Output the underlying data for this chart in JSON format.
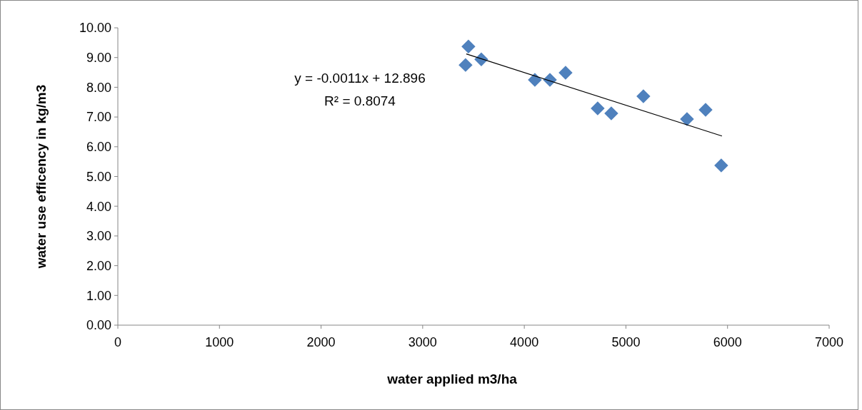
{
  "chart_data": {
    "type": "scatter",
    "xlabel": "water applied m3/ha",
    "ylabel": "water use efficency in kg/m3",
    "annotations": [
      "y = -0.0011x + 12.896",
      "R² = 0.8074"
    ],
    "xlim": [
      0,
      7000
    ],
    "xticks": [
      0,
      1000,
      2000,
      3000,
      4000,
      5000,
      6000,
      7000
    ],
    "ylim": [
      0,
      10
    ],
    "yticks": [
      {
        "value": 0,
        "label": "0.00"
      },
      {
        "value": 1,
        "label": "1.00"
      },
      {
        "value": 2,
        "label": "2.00"
      },
      {
        "value": 3,
        "label": "3.00"
      },
      {
        "value": 4,
        "label": "4.00"
      },
      {
        "value": 5,
        "label": "5.00"
      },
      {
        "value": 6,
        "label": "6.00"
      },
      {
        "value": 7,
        "label": "7.00"
      },
      {
        "value": 8,
        "label": "8.00"
      },
      {
        "value": 9,
        "label": "9.00"
      },
      {
        "value": 10,
        "label": "10.00"
      }
    ],
    "grid": false,
    "series": [
      {
        "marker": "diamond",
        "color": "#4f81bd",
        "x": [
          3450,
          3422,
          3577,
          4104,
          4252,
          4406,
          4722,
          4856,
          5172,
          5601,
          5784,
          5938
        ],
        "values": [
          9.37,
          8.75,
          8.94,
          8.25,
          8.25,
          8.49,
          7.29,
          7.12,
          7.7,
          6.93,
          7.24,
          5.37
        ]
      },
      {
        "type": "line",
        "color": "#000000",
        "x": [
          3429,
          5945
        ],
        "values": [
          9.12,
          6.36
        ],
        "line_style": "solid"
      }
    ]
  }
}
